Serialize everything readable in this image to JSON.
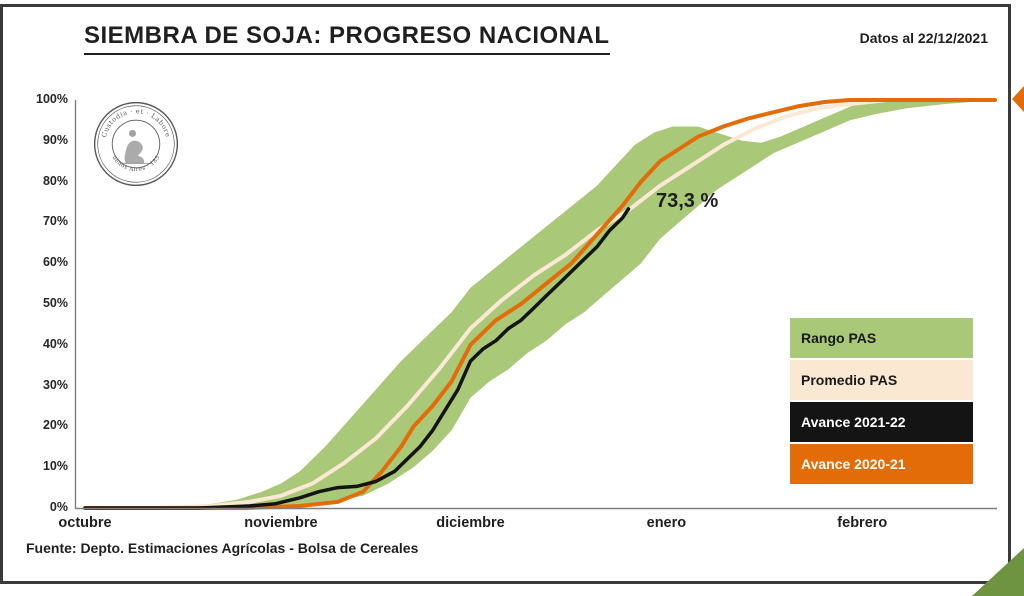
{
  "slide": {
    "title": "SIEMBRA DE SOJA: PROGRESO NACIONAL",
    "date_note": "Datos al 22/12/2021",
    "annotation": "73,3 %",
    "source": "Fuente: Depto. Estimaciones Agrícolas - Bolsa de Cereales"
  },
  "logo": {
    "top_text": "Custodia · et · Labore",
    "bottom_text": "Buenos Aires · 1854"
  },
  "legend": {
    "items": [
      {
        "label": "Rango PAS",
        "bg": "#a9c878",
        "fg": "#1a1a1a"
      },
      {
        "label": "Promedio PAS",
        "bg": "#fbe8d3",
        "fg": "#1a1a1a"
      },
      {
        "label": "Avance 2021-22",
        "bg": "#141414",
        "fg": "#ffffff"
      },
      {
        "label": "Avance 2020-21",
        "bg": "#e36c09",
        "fg": "#ffffff"
      }
    ]
  },
  "decorations": {
    "triangle_color": "#6f9441",
    "accent_color": "#e36c09",
    "border_color": "#3a3a3a"
  },
  "chart_data": {
    "type": "line",
    "title": "SIEMBRA DE SOJA: PROGRESO NACIONAL",
    "xlabel": "",
    "ylabel": "",
    "grid": false,
    "legend_position": "right-inside",
    "ylim": [
      0,
      100
    ],
    "y_ticks": [
      "0%",
      "10%",
      "20%",
      "30%",
      "40%",
      "50%",
      "60%",
      "70%",
      "80%",
      "90%",
      "100%"
    ],
    "x_labels": [
      "octubre",
      "noviembre",
      "diciembre",
      "enero",
      "febrero"
    ],
    "x_label_days": [
      0,
      31,
      61,
      92,
      123
    ],
    "x_domain_days": [
      0,
      144
    ],
    "band": {
      "name": "Rango PAS",
      "color": "#a9c878",
      "upper": [
        [
          0,
          0
        ],
        [
          15,
          0.5
        ],
        [
          20,
          1
        ],
        [
          24,
          2
        ],
        [
          28,
          4
        ],
        [
          31,
          6
        ],
        [
          34,
          9
        ],
        [
          38,
          15
        ],
        [
          42,
          22
        ],
        [
          46,
          29
        ],
        [
          50,
          36
        ],
        [
          54,
          42
        ],
        [
          58,
          48
        ],
        [
          61,
          54
        ],
        [
          65,
          59
        ],
        [
          69,
          64
        ],
        [
          73,
          69
        ],
        [
          77,
          74
        ],
        [
          81,
          79
        ],
        [
          84,
          84
        ],
        [
          87,
          89
        ],
        [
          90,
          92
        ],
        [
          93,
          93.5
        ],
        [
          97,
          93.5
        ],
        [
          100,
          92
        ],
        [
          104,
          90
        ],
        [
          107,
          89.5
        ],
        [
          110,
          91
        ],
        [
          113,
          93
        ],
        [
          116,
          95
        ],
        [
          119,
          97
        ],
        [
          122,
          99
        ],
        [
          126,
          100
        ],
        [
          144,
          100
        ]
      ],
      "lower": [
        [
          0,
          0
        ],
        [
          25,
          0
        ],
        [
          33,
          0.5
        ],
        [
          39,
          1.5
        ],
        [
          44,
          3
        ],
        [
          48,
          6
        ],
        [
          52,
          10
        ],
        [
          55,
          14
        ],
        [
          58,
          19
        ],
        [
          61,
          27
        ],
        [
          64,
          31
        ],
        [
          67,
          34
        ],
        [
          70,
          38
        ],
        [
          73,
          41
        ],
        [
          76,
          45
        ],
        [
          79,
          48
        ],
        [
          82,
          52
        ],
        [
          85,
          56
        ],
        [
          88,
          60
        ],
        [
          91,
          66
        ],
        [
          94,
          70
        ],
        [
          97,
          74
        ],
        [
          100,
          78
        ],
        [
          103,
          81
        ],
        [
          106,
          84
        ],
        [
          109,
          87
        ],
        [
          112,
          89
        ],
        [
          115,
          91
        ],
        [
          118,
          93
        ],
        [
          121,
          95
        ],
        [
          125,
          96.5
        ],
        [
          130,
          98
        ],
        [
          136,
          99
        ],
        [
          144,
          100
        ]
      ]
    },
    "series": [
      {
        "name": "Promedio PAS",
        "color": "#fbe9d6",
        "width": 4,
        "points": [
          [
            0,
            0
          ],
          [
            12,
            0
          ],
          [
            20,
            0.5
          ],
          [
            26,
            1.5
          ],
          [
            31,
            3
          ],
          [
            36,
            6
          ],
          [
            41,
            11
          ],
          [
            46,
            17
          ],
          [
            51,
            25
          ],
          [
            56,
            34
          ],
          [
            61,
            44
          ],
          [
            66,
            51
          ],
          [
            71,
            57
          ],
          [
            76,
            62
          ],
          [
            81,
            68
          ],
          [
            86,
            73
          ],
          [
            91,
            79
          ],
          [
            96,
            84
          ],
          [
            101,
            89
          ],
          [
            106,
            93
          ],
          [
            111,
            96
          ],
          [
            116,
            98
          ],
          [
            121,
            99
          ],
          [
            127,
            100
          ],
          [
            144,
            100
          ]
        ]
      },
      {
        "name": "Avance 2020-21",
        "color": "#e36c09",
        "width": 4,
        "points": [
          [
            0,
            0
          ],
          [
            25,
            0
          ],
          [
            34,
            0.5
          ],
          [
            40,
            1.5
          ],
          [
            44,
            4
          ],
          [
            47,
            9
          ],
          [
            50,
            15
          ],
          [
            52,
            20
          ],
          [
            55,
            25
          ],
          [
            58,
            31
          ],
          [
            61,
            40
          ],
          [
            65,
            46
          ],
          [
            69,
            50
          ],
          [
            73,
            55
          ],
          [
            77,
            60
          ],
          [
            81,
            67
          ],
          [
            85,
            74
          ],
          [
            88,
            80
          ],
          [
            91,
            85
          ],
          [
            94,
            88
          ],
          [
            97,
            91
          ],
          [
            101,
            93.5
          ],
          [
            105,
            95.5
          ],
          [
            109,
            97
          ],
          [
            113,
            98.5
          ],
          [
            117,
            99.5
          ],
          [
            121,
            100
          ],
          [
            144,
            100
          ]
        ]
      },
      {
        "name": "Avance 2021-22",
        "color": "#141414",
        "width": 3.5,
        "end_value": 73.3,
        "end_label": "73,3 %",
        "points": [
          [
            0,
            0
          ],
          [
            18,
            0
          ],
          [
            26,
            0.5
          ],
          [
            30,
            1
          ],
          [
            34,
            2.5
          ],
          [
            37,
            4
          ],
          [
            40,
            5
          ],
          [
            43,
            5.3
          ],
          [
            46,
            6.5
          ],
          [
            49,
            9
          ],
          [
            51,
            12
          ],
          [
            53,
            15
          ],
          [
            55,
            19
          ],
          [
            57,
            24
          ],
          [
            59,
            29
          ],
          [
            61,
            36
          ],
          [
            63,
            39
          ],
          [
            65,
            41
          ],
          [
            67,
            44
          ],
          [
            69,
            46
          ],
          [
            71,
            49
          ],
          [
            73,
            52
          ],
          [
            75,
            55
          ],
          [
            77,
            58
          ],
          [
            79,
            61
          ],
          [
            81,
            64
          ],
          [
            83,
            68
          ],
          [
            85,
            71
          ],
          [
            86,
            73.3
          ]
        ]
      }
    ]
  }
}
